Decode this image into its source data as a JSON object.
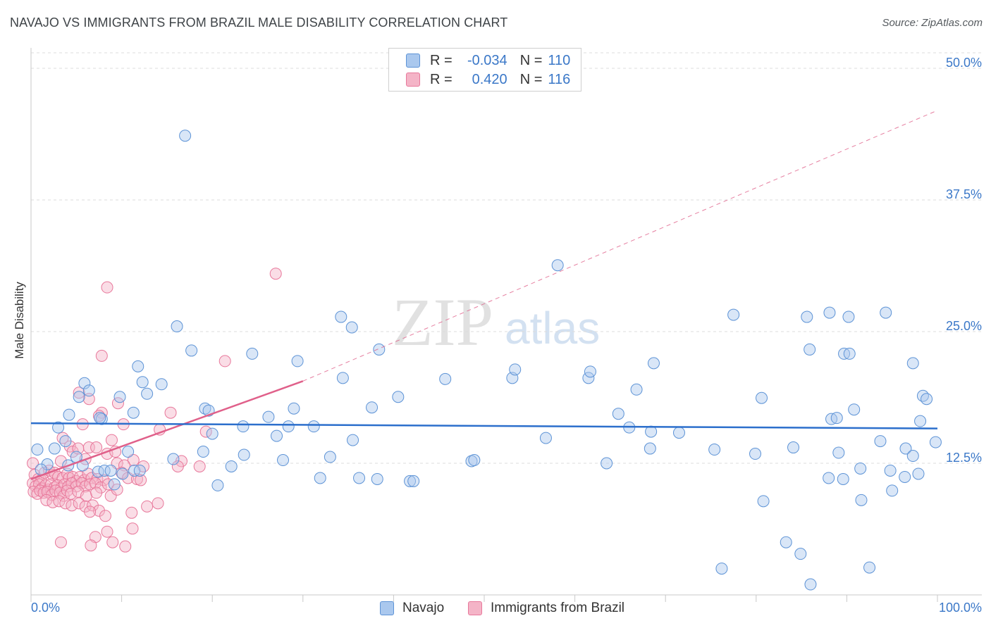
{
  "title": "NAVAJO VS IMMIGRANTS FROM BRAZIL MALE DISABILITY CORRELATION CHART",
  "source": "Source: ZipAtlas.com",
  "watermark": {
    "zip": "ZIP",
    "atlas": "atlas"
  },
  "colors": {
    "navajo_fill": "#aac8ee",
    "navajo_stroke": "#5d93d6",
    "navajo_line": "#2c6fcc",
    "brazil_fill": "#f4b4c7",
    "brazil_stroke": "#e8789b",
    "brazil_line": "#e0608a",
    "grid": "#dcdcdc",
    "axis_text": "#3b78c8"
  },
  "legend": {
    "rows": [
      {
        "r_label": "R =",
        "r_value": "-0.034",
        "n_label": "N =",
        "n_value": "110"
      },
      {
        "r_label": "R =",
        "r_value": "0.420",
        "n_label": "N =",
        "n_value": "116"
      }
    ]
  },
  "bottom_legend": {
    "navajo": "Navajo",
    "brazil": "Immigrants from Brazil"
  },
  "chart_data": {
    "type": "scatter",
    "title": "NAVAJO VS IMMIGRANTS FROM BRAZIL MALE DISABILITY CORRELATION CHART",
    "xlabel": "",
    "ylabel": "Male Disability",
    "xlim": [
      0,
      100
    ],
    "ylim": [
      0,
      52
    ],
    "x_tick_labels": {
      "left": "0.0%",
      "right": "100.0%"
    },
    "y_ticks": [
      {
        "value": 12.5,
        "label": "12.5%"
      },
      {
        "value": 25.0,
        "label": "25.0%"
      },
      {
        "value": 37.5,
        "label": "37.5%"
      },
      {
        "value": 50.0,
        "label": "50.0%"
      }
    ],
    "series": [
      {
        "name": "Navajo",
        "r": -0.034,
        "n": 110,
        "trend": {
          "x0": 0,
          "y0": 16.3,
          "x1": 100,
          "y1": 15.8
        },
        "points": [
          [
            17,
            43.6
          ],
          [
            58.1,
            31.3
          ],
          [
            16.1,
            25.5
          ],
          [
            34.2,
            26.4
          ],
          [
            35.4,
            25.4
          ],
          [
            38.4,
            23.3
          ],
          [
            77.5,
            26.6
          ],
          [
            85.6,
            26.4
          ],
          [
            88.1,
            26.8
          ],
          [
            90.2,
            26.4
          ],
          [
            94.3,
            26.8
          ],
          [
            17.7,
            23.2
          ],
          [
            24.4,
            22.9
          ],
          [
            29.4,
            22.2
          ],
          [
            34.4,
            20.6
          ],
          [
            40.5,
            18.8
          ],
          [
            45.7,
            20.5
          ],
          [
            53.1,
            20.6
          ],
          [
            53.4,
            21.4
          ],
          [
            61.5,
            20.6
          ],
          [
            61.7,
            21.2
          ],
          [
            68.7,
            22.0
          ],
          [
            85.9,
            23.3
          ],
          [
            89.7,
            22.9
          ],
          [
            90.3,
            22.9
          ],
          [
            97.3,
            22.0
          ],
          [
            11.8,
            21.7
          ],
          [
            12.3,
            20.2
          ],
          [
            12.8,
            19.1
          ],
          [
            14.4,
            20.0
          ],
          [
            5.9,
            20.1
          ],
          [
            6.4,
            19.4
          ],
          [
            5.3,
            18.8
          ],
          [
            9.8,
            18.8
          ],
          [
            66.8,
            19.5
          ],
          [
            80.6,
            18.7
          ],
          [
            98.4,
            18.9
          ],
          [
            98.8,
            18.6
          ],
          [
            4.2,
            17.1
          ],
          [
            7.8,
            16.7
          ],
          [
            11.3,
            17.3
          ],
          [
            19.2,
            17.7
          ],
          [
            19.6,
            17.5
          ],
          [
            26.2,
            16.9
          ],
          [
            29.0,
            17.7
          ],
          [
            37.6,
            17.8
          ],
          [
            64.8,
            17.2
          ],
          [
            90.8,
            17.6
          ],
          [
            88.3,
            16.7
          ],
          [
            88.9,
            16.8
          ],
          [
            98.1,
            16.5
          ],
          [
            3.0,
            15.9
          ],
          [
            7.6,
            16.8
          ],
          [
            23.4,
            16.0
          ],
          [
            28.4,
            16.0
          ],
          [
            31.2,
            16.0
          ],
          [
            66.0,
            15.9
          ],
          [
            68.4,
            15.5
          ],
          [
            71.5,
            15.4
          ],
          [
            27.1,
            15.1
          ],
          [
            20.0,
            15.3
          ],
          [
            35.5,
            14.7
          ],
          [
            56.8,
            14.9
          ],
          [
            68.3,
            13.9
          ],
          [
            75.4,
            13.8
          ],
          [
            79.9,
            13.4
          ],
          [
            84.1,
            14.0
          ],
          [
            89.1,
            13.5
          ],
          [
            93.7,
            14.6
          ],
          [
            96.5,
            13.9
          ],
          [
            97.3,
            13.2
          ],
          [
            99.8,
            14.5
          ],
          [
            0.7,
            13.8
          ],
          [
            1.8,
            12.4
          ],
          [
            2.6,
            13.9
          ],
          [
            3.8,
            14.6
          ],
          [
            5.0,
            13.1
          ],
          [
            10.7,
            13.6
          ],
          [
            15.7,
            12.9
          ],
          [
            19.0,
            13.6
          ],
          [
            22.1,
            12.2
          ],
          [
            23.5,
            13.3
          ],
          [
            27.8,
            12.8
          ],
          [
            33.0,
            13.1
          ],
          [
            48.6,
            12.7
          ],
          [
            48.9,
            12.8
          ],
          [
            63.5,
            12.5
          ],
          [
            1.1,
            11.9
          ],
          [
            4.1,
            12.3
          ],
          [
            5.7,
            12.3
          ],
          [
            7.4,
            11.7
          ],
          [
            8.1,
            11.8
          ],
          [
            8.8,
            11.8
          ],
          [
            10.1,
            11.5
          ],
          [
            11.4,
            11.8
          ],
          [
            12.0,
            11.8
          ],
          [
            31.9,
            11.1
          ],
          [
            36.2,
            11.1
          ],
          [
            38.2,
            11.0
          ],
          [
            88.0,
            11.1
          ],
          [
            89.6,
            11.0
          ],
          [
            91.5,
            12.0
          ],
          [
            94.8,
            11.8
          ],
          [
            96.4,
            11.2
          ],
          [
            97.9,
            11.5
          ],
          [
            9.2,
            10.5
          ],
          [
            20.6,
            10.4
          ],
          [
            41.8,
            10.8
          ],
          [
            42.2,
            10.8
          ],
          [
            80.8,
            8.9
          ],
          [
            91.6,
            9.0
          ],
          [
            95.0,
            9.9
          ],
          [
            83.3,
            5.0
          ],
          [
            84.9,
            3.9
          ],
          [
            76.2,
            2.5
          ],
          [
            92.5,
            2.6
          ],
          [
            86.0,
            1.0
          ]
        ]
      },
      {
        "name": "Immigrants from Brazil",
        "r": 0.42,
        "n": 116,
        "trend": {
          "x0": 0,
          "y0": 11.0,
          "x1": 30,
          "y1": 20.3,
          "ext_x1": 100,
          "ext_y1": 46.0
        },
        "points": [
          [
            27.0,
            30.5
          ],
          [
            8.4,
            29.2
          ],
          [
            7.8,
            22.7
          ],
          [
            21.4,
            22.2
          ],
          [
            5.3,
            19.2
          ],
          [
            6.4,
            18.6
          ],
          [
            7.8,
            17.3
          ],
          [
            7.5,
            17.0
          ],
          [
            9.6,
            18.2
          ],
          [
            15.4,
            17.3
          ],
          [
            5.7,
            16.2
          ],
          [
            10.2,
            16.2
          ],
          [
            14.2,
            15.7
          ],
          [
            19.3,
            15.5
          ],
          [
            8.9,
            14.7
          ],
          [
            3.5,
            14.9
          ],
          [
            4.3,
            14.1
          ],
          [
            4.6,
            13.6
          ],
          [
            5.2,
            13.9
          ],
          [
            6.4,
            14.0
          ],
          [
            7.2,
            14.0
          ],
          [
            8.4,
            13.4
          ],
          [
            9.3,
            13.6
          ],
          [
            11.3,
            12.8
          ],
          [
            6.0,
            12.9
          ],
          [
            3.3,
            12.7
          ],
          [
            9.5,
            12.5
          ],
          [
            10.3,
            12.3
          ],
          [
            12.4,
            12.2
          ],
          [
            16.6,
            12.7
          ],
          [
            16.2,
            12.2
          ],
          [
            18.6,
            12.2
          ],
          [
            0.2,
            12.5
          ],
          [
            0.4,
            11.4
          ],
          [
            0.8,
            11.0
          ],
          [
            1.1,
            10.9
          ],
          [
            1.5,
            11.6
          ],
          [
            2.0,
            11.8
          ],
          [
            2.4,
            11.4
          ],
          [
            2.6,
            11.6
          ],
          [
            3.0,
            11.2
          ],
          [
            3.5,
            11.1
          ],
          [
            4.0,
            11.5
          ],
          [
            4.2,
            11.1
          ],
          [
            4.6,
            11.2
          ],
          [
            5.0,
            10.8
          ],
          [
            5.4,
            11.2
          ],
          [
            5.9,
            10.9
          ],
          [
            6.3,
            11.5
          ],
          [
            6.7,
            11.1
          ],
          [
            7.3,
            11.0
          ],
          [
            8.0,
            10.9
          ],
          [
            10.0,
            11.6
          ],
          [
            10.7,
            11.1
          ],
          [
            11.7,
            11.0
          ],
          [
            0.2,
            10.6
          ],
          [
            0.5,
            10.3
          ],
          [
            0.9,
            10.5
          ],
          [
            1.2,
            10.1
          ],
          [
            1.6,
            10.4
          ],
          [
            1.9,
            10.0
          ],
          [
            2.2,
            10.5
          ],
          [
            2.6,
            10.2
          ],
          [
            2.9,
            10.4
          ],
          [
            3.3,
            10.1
          ],
          [
            3.7,
            10.5
          ],
          [
            4.1,
            10.3
          ],
          [
            4.5,
            10.6
          ],
          [
            5.0,
            10.3
          ],
          [
            5.6,
            10.6
          ],
          [
            6.0,
            10.3
          ],
          [
            6.5,
            10.5
          ],
          [
            7.1,
            10.6
          ],
          [
            7.7,
            10.2
          ],
          [
            8.5,
            10.5
          ],
          [
            0.3,
            9.8
          ],
          [
            0.7,
            9.6
          ],
          [
            1.0,
            9.9
          ],
          [
            1.4,
            9.7
          ],
          [
            1.8,
            9.8
          ],
          [
            2.3,
            9.5
          ],
          [
            2.7,
            9.9
          ],
          [
            3.2,
            9.7
          ],
          [
            3.6,
            9.4
          ],
          [
            4.0,
            9.9
          ],
          [
            4.4,
            9.6
          ],
          [
            5.2,
            9.8
          ],
          [
            6.1,
            9.4
          ],
          [
            7.2,
            9.7
          ],
          [
            8.8,
            9.4
          ],
          [
            9.5,
            10.0
          ],
          [
            12.1,
            10.9
          ],
          [
            1.7,
            9.0
          ],
          [
            2.4,
            8.8
          ],
          [
            3.1,
            8.9
          ],
          [
            3.8,
            8.7
          ],
          [
            4.5,
            8.5
          ],
          [
            5.3,
            8.7
          ],
          [
            6.0,
            8.4
          ],
          [
            6.8,
            8.5
          ],
          [
            7.5,
            8.0
          ],
          [
            8.2,
            7.5
          ],
          [
            14.0,
            8.7
          ],
          [
            12.8,
            8.4
          ],
          [
            11.1,
            7.8
          ],
          [
            6.5,
            7.9
          ],
          [
            8.4,
            6.0
          ],
          [
            7.1,
            5.5
          ],
          [
            11.2,
            6.3
          ],
          [
            9.0,
            5.0
          ],
          [
            3.3,
            5.0
          ],
          [
            6.6,
            4.7
          ],
          [
            10.4,
            4.6
          ]
        ]
      }
    ]
  }
}
